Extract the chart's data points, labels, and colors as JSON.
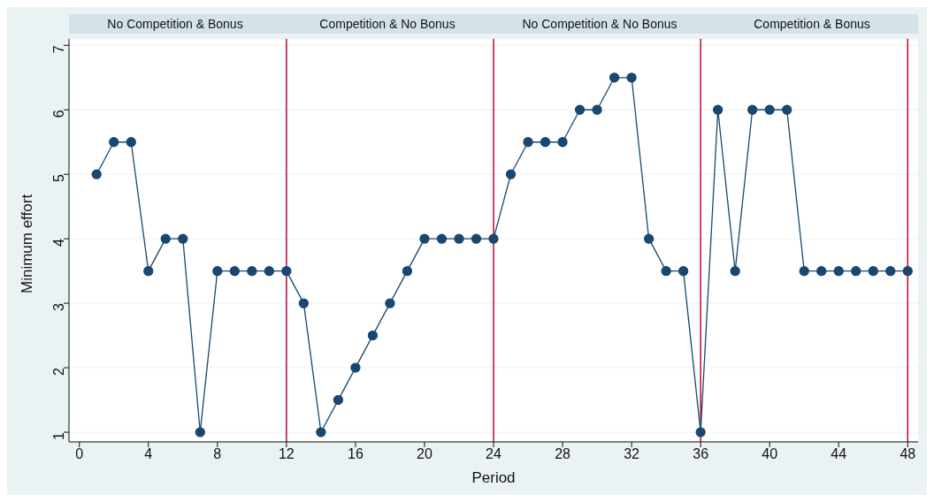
{
  "chart_data": {
    "type": "line",
    "xlabel": "Period",
    "ylabel": "Minimum effort",
    "x": [
      1,
      2,
      3,
      4,
      5,
      6,
      7,
      8,
      9,
      10,
      11,
      12,
      13,
      14,
      15,
      16,
      17,
      18,
      19,
      20,
      21,
      22,
      23,
      24,
      25,
      26,
      27,
      28,
      29,
      30,
      31,
      32,
      33,
      34,
      35,
      36,
      37,
      38,
      39,
      40,
      41,
      42,
      43,
      44,
      45,
      46,
      47,
      48
    ],
    "series": [
      {
        "color": "#1a476f",
        "values": [
          5,
          5.5,
          5.5,
          3.5,
          4,
          4,
          1,
          3.5,
          3.5,
          3.5,
          3.5,
          3.5,
          3,
          1,
          1.5,
          2,
          2.5,
          3,
          3.5,
          4,
          4,
          4,
          4,
          4,
          5,
          5.5,
          5.5,
          5.5,
          6,
          6,
          6.5,
          6.5,
          4,
          3.5,
          3.5,
          1,
          6,
          3.5,
          6,
          6,
          6,
          3.5,
          3.5,
          3.5,
          3.5,
          3.5,
          3.5,
          3.5
        ]
      }
    ],
    "xlim": [
      -0.6,
      48.6
    ],
    "xticks": [
      0,
      4,
      8,
      12,
      16,
      20,
      24,
      28,
      32,
      36,
      40,
      44,
      48
    ],
    "ylim": [
      0.85,
      7.1
    ],
    "yticks": [
      1,
      2,
      3,
      4,
      5,
      6,
      7
    ],
    "grid": "y",
    "marker": "circle",
    "line_style": "solid",
    "legend": false,
    "ref_lines": [
      {
        "axis": "x",
        "value": 12,
        "color": "#c10534"
      },
      {
        "axis": "x",
        "value": 24,
        "color": "#c10534"
      },
      {
        "axis": "x",
        "value": 36,
        "color": "#c10534"
      },
      {
        "axis": "x",
        "value": 48,
        "color": "#c10534"
      }
    ],
    "annotations": [
      "No Competition &  Bonus",
      "Competition & No Bonus",
      "No Competition & No Bonus",
      "Competition & Bonus"
    ]
  }
}
